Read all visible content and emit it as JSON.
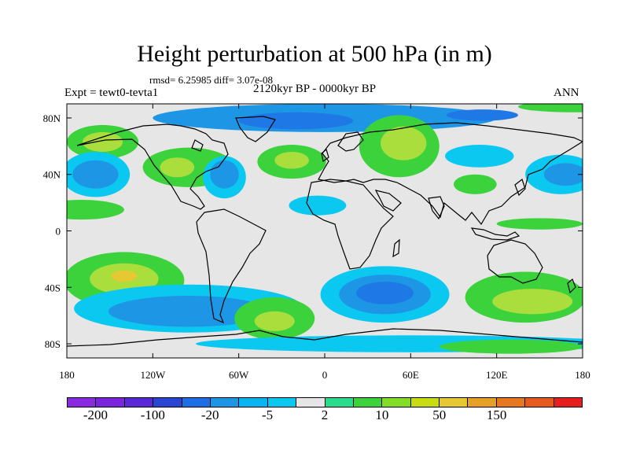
{
  "title": "Height perturbation at 500 hPa (in m)",
  "stats_line": "rmsd= 6.25985 diff= 3.07e-08",
  "experiment": "Expt = tewt0-tevta1",
  "period": "2120kyr BP - 0000kyr BP",
  "season": "ANN",
  "map": {
    "projection": "cylindrical equidistant",
    "lon_range": [
      -180,
      180
    ],
    "lat_range": [
      -90,
      90
    ],
    "background_color": "#e6e6e6",
    "x_ticks": [
      {
        "value": -180,
        "label": "180"
      },
      {
        "value": -120,
        "label": "120W"
      },
      {
        "value": -60,
        "label": "60W"
      },
      {
        "value": 0,
        "label": "0"
      },
      {
        "value": 60,
        "label": "60E"
      },
      {
        "value": 120,
        "label": "120E"
      },
      {
        "value": 180,
        "label": "180"
      }
    ],
    "y_ticks": [
      {
        "value": 80,
        "label": "80N"
      },
      {
        "value": 40,
        "label": "40N"
      },
      {
        "value": 0,
        "label": "0"
      },
      {
        "value": -40,
        "label": "40S"
      },
      {
        "value": -80,
        "label": "80S"
      }
    ],
    "anomaly_regions": [
      {
        "name": "north-polar-low",
        "lon": 0,
        "lat": 80,
        "rlon": 120,
        "rlat": 10,
        "color": "#1e96e6"
      },
      {
        "name": "north-polar-low-core",
        "lon": -20,
        "lat": 78,
        "rlon": 40,
        "rlat": 6,
        "color": "#1e78e6"
      },
      {
        "name": "asia-low-core",
        "lon": 110,
        "lat": 82,
        "rlon": 25,
        "rlat": 4,
        "color": "#1e78e6"
      },
      {
        "name": "arctic-ring-high",
        "lon": 175,
        "lat": 88,
        "rlon": 40,
        "rlat": 4,
        "color": "#3cd23c"
      },
      {
        "name": "n-pacific-high-ring",
        "lon": -155,
        "lat": 63,
        "rlon": 25,
        "rlat": 12,
        "color": "#3cd23c"
      },
      {
        "name": "n-pacific-high",
        "lon": -155,
        "lat": 63,
        "rlon": 14,
        "rlat": 7,
        "color": "#aade3c"
      },
      {
        "name": "n-pacific-low-ring",
        "lon": -160,
        "lat": 40,
        "rlon": 24,
        "rlat": 16,
        "color": "#0ac8f0"
      },
      {
        "name": "n-pacific-low",
        "lon": -160,
        "lat": 40,
        "rlon": 16,
        "rlat": 10,
        "color": "#1e96e6"
      },
      {
        "name": "n-america-high-ring",
        "lon": -95,
        "lat": 45,
        "rlon": 32,
        "rlat": 14,
        "color": "#3cd23c"
      },
      {
        "name": "n-america-high",
        "lon": -103,
        "lat": 45,
        "rlon": 12,
        "rlat": 7,
        "color": "#aade3c"
      },
      {
        "name": "n-atlantic-low-ring",
        "lon": -70,
        "lat": 38,
        "rlon": 15,
        "rlat": 15,
        "color": "#0ac8f0"
      },
      {
        "name": "n-atlantic-low",
        "lon": -70,
        "lat": 40,
        "rlon": 10,
        "rlat": 10,
        "color": "#1e96e6"
      },
      {
        "name": "atlantic-high-ring",
        "lon": -23,
        "lat": 49,
        "rlon": 24,
        "rlat": 12,
        "color": "#3cd23c"
      },
      {
        "name": "atlantic-high",
        "lon": -23,
        "lat": 50,
        "rlon": 12,
        "rlat": 6,
        "color": "#aade3c"
      },
      {
        "name": "eurasia-high-ring",
        "lon": 52,
        "lat": 60,
        "rlon": 28,
        "rlat": 22,
        "color": "#3cd23c"
      },
      {
        "name": "eurasia-high",
        "lon": 55,
        "lat": 62,
        "rlon": 16,
        "rlat": 12,
        "color": "#aade3c"
      },
      {
        "name": "sahara-low",
        "lon": -5,
        "lat": 18,
        "rlon": 20,
        "rlat": 7,
        "color": "#0ac8f0"
      },
      {
        "name": "siberia-low",
        "lon": 108,
        "lat": 53,
        "rlon": 24,
        "rlat": 8,
        "color": "#0ac8f0"
      },
      {
        "name": "china-high",
        "lon": 105,
        "lat": 33,
        "rlon": 15,
        "rlat": 7,
        "color": "#3cd23c"
      },
      {
        "name": "w-pacific-low-ring",
        "lon": 165,
        "lat": 40,
        "rlon": 25,
        "rlat": 14,
        "color": "#0ac8f0"
      },
      {
        "name": "w-pacific-low",
        "lon": 168,
        "lat": 40,
        "rlon": 15,
        "rlat": 8,
        "color": "#1e96e6"
      },
      {
        "name": "subtropical-north-band",
        "lon": -170,
        "lat": 15,
        "rlon": 30,
        "rlat": 7,
        "color": "#3cd23c"
      },
      {
        "name": "equatorial-east-band",
        "lon": 150,
        "lat": 5,
        "rlon": 30,
        "rlat": 4,
        "color": "#3cd23c"
      },
      {
        "name": "s-pacific-high-ring",
        "lon": -140,
        "lat": -35,
        "rlon": 42,
        "rlat": 20,
        "color": "#3cd23c"
      },
      {
        "name": "s-pacific-high-mid",
        "lon": -140,
        "lat": -34,
        "rlon": 24,
        "rlat": 11,
        "color": "#aade3c"
      },
      {
        "name": "s-pacific-high-core",
        "lon": -140,
        "lat": -32,
        "rlon": 9,
        "rlat": 4,
        "color": "#e6c832"
      },
      {
        "name": "south-low-west-ring",
        "lon": -95,
        "lat": -55,
        "rlon": 80,
        "rlat": 17,
        "color": "#0ac8f0"
      },
      {
        "name": "south-low-west",
        "lon": -95,
        "lat": -57,
        "rlon": 56,
        "rlat": 11,
        "color": "#1e96e6"
      },
      {
        "name": "s-atlantic-high-ring",
        "lon": -35,
        "lat": -62,
        "rlon": 28,
        "rlat": 15,
        "color": "#3cd23c"
      },
      {
        "name": "s-atlantic-high",
        "lon": -35,
        "lat": -64,
        "rlon": 14,
        "rlat": 7,
        "color": "#aade3c"
      },
      {
        "name": "south-indian-low-ring",
        "lon": 42,
        "lat": -45,
        "rlon": 45,
        "rlat": 20,
        "color": "#0ac8f0"
      },
      {
        "name": "south-indian-low",
        "lon": 42,
        "lat": -45,
        "rlon": 32,
        "rlat": 14,
        "color": "#1e96e6"
      },
      {
        "name": "south-indian-low-core",
        "lon": 42,
        "lat": -44,
        "rlon": 20,
        "rlat": 8,
        "color": "#1e78e6"
      },
      {
        "name": "s-australia-high-ring",
        "lon": 140,
        "lat": -47,
        "rlon": 42,
        "rlat": 18,
        "color": "#3cd23c"
      },
      {
        "name": "s-australia-high",
        "lon": 145,
        "lat": -50,
        "rlon": 28,
        "rlat": 9,
        "color": "#aade3c"
      },
      {
        "name": "antarctic-low",
        "lon": 60,
        "lat": -80,
        "rlon": 150,
        "rlat": 6,
        "color": "#0ac8f0"
      },
      {
        "name": "antarctic-high-east",
        "lon": 130,
        "lat": -82,
        "rlon": 50,
        "rlat": 5,
        "color": "#3cd23c"
      }
    ]
  },
  "colorbar": {
    "colors": [
      "#8a2be2",
      "#7a24dc",
      "#5a28d6",
      "#2846d2",
      "#1e6ee6",
      "#1e96e6",
      "#0ab4f0",
      "#0ac8f0",
      "#e6e6e6",
      "#28dc8c",
      "#3cd23c",
      "#82dc28",
      "#c8dc14",
      "#e6c832",
      "#e6a028",
      "#e67820",
      "#e65a1e",
      "#e61e1e"
    ],
    "labels": [
      "-200",
      "-100",
      "-20",
      "-5",
      "2",
      "10",
      "50",
      "150"
    ],
    "label_positions_after_cell": [
      1,
      3,
      5,
      7,
      9,
      11,
      13,
      15
    ]
  }
}
